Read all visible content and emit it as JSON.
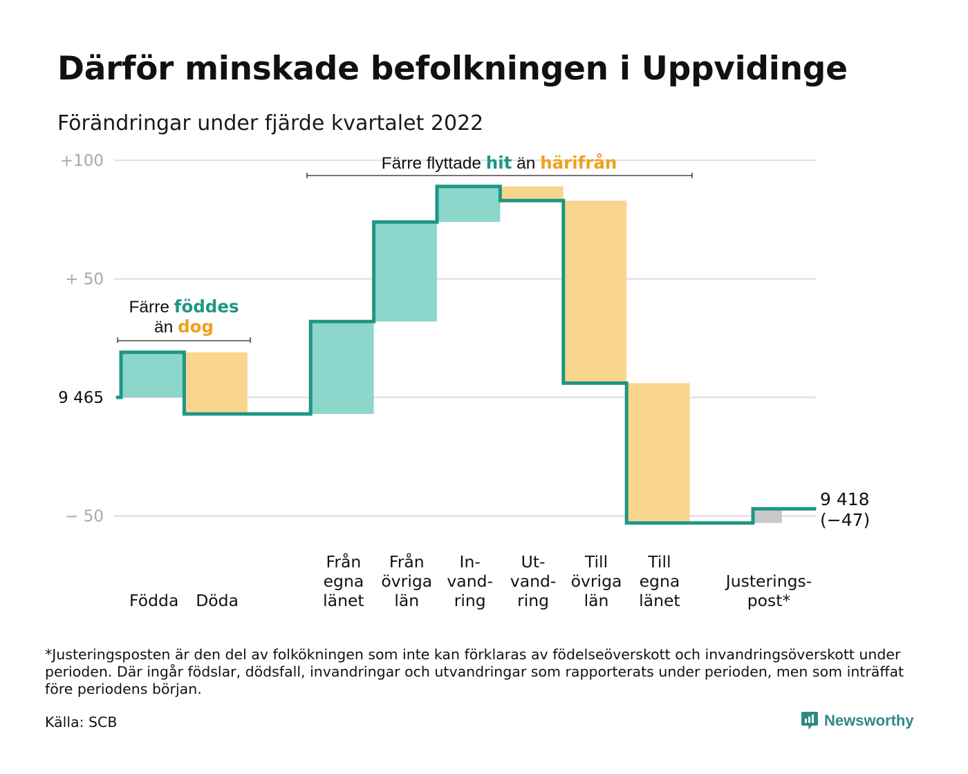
{
  "header": {
    "title": "Därför minskade befolkningen i Uppvidinge",
    "subtitle": "Förändringar under fjärde kvartalet 2022"
  },
  "chart_data": {
    "type": "waterfall",
    "start_value": 9465,
    "start_label": "9 465",
    "end_label": "9 418",
    "end_change_label": "(−47)",
    "ylim": [
      -55,
      100
    ],
    "y_ticks": [
      {
        "value": 100,
        "label": "+100"
      },
      {
        "value": 50,
        "label": "+ 50"
      },
      {
        "value": -50,
        "label": "− 50"
      }
    ],
    "steps": [
      {
        "label": [
          "Födda"
        ],
        "value": 19,
        "kind": "in"
      },
      {
        "label": [
          "Döda"
        ],
        "value": -26,
        "kind": "out"
      },
      {
        "label": [],
        "value": 0,
        "kind": "gap"
      },
      {
        "label": [
          "Från",
          "egna",
          "länet"
        ],
        "value": 39,
        "kind": "in"
      },
      {
        "label": [
          "Från",
          "övriga",
          "län"
        ],
        "value": 42,
        "kind": "in"
      },
      {
        "label": [
          "In-",
          "vand-",
          "ring"
        ],
        "value": 15,
        "kind": "in"
      },
      {
        "label": [
          "Ut-",
          "vand-",
          "ring"
        ],
        "value": -6,
        "kind": "out"
      },
      {
        "label": [
          "Till",
          "övriga",
          "län"
        ],
        "value": -77,
        "kind": "out"
      },
      {
        "label": [
          "Till",
          "egna",
          "länet"
        ],
        "value": -59,
        "kind": "out"
      },
      {
        "label": [],
        "value": 0,
        "kind": "gap"
      },
      {
        "label": [
          "Justerings-",
          "post*"
        ],
        "value": 6,
        "kind": "adjust"
      }
    ],
    "annotations": {
      "births": {
        "line1": "Färre ",
        "line1_hl": "föddes",
        "line2": "än ",
        "line2_hl": "dog"
      },
      "moves": {
        "text1": "Färre flyttade ",
        "hl1": "hit",
        "text2": " än ",
        "hl2": "härifrån"
      }
    }
  },
  "colors": {
    "in_fill": "#8dd6cc",
    "out_fill": "#fad58e",
    "adjust_fill": "#c8c8c8",
    "line": "#1e9685",
    "teal_text": "#1e9685",
    "orange_text": "#f0a020",
    "grid": "#e1e1e6",
    "tick": "#a8a8a8"
  },
  "footnote": "*Justeringsposten är den del av folkökningen som inte kan förklaras av födelseöverskott och invandringsöverskott under perioden. Där ingår födslar, dödsfall, invandringar och utvandringar som rapporterats under perioden, men som inträffat före periodens början.",
  "source": "Källa: SCB",
  "brand": {
    "name": "Newsworthy",
    "icon": "newsworthy-logo-icon"
  }
}
